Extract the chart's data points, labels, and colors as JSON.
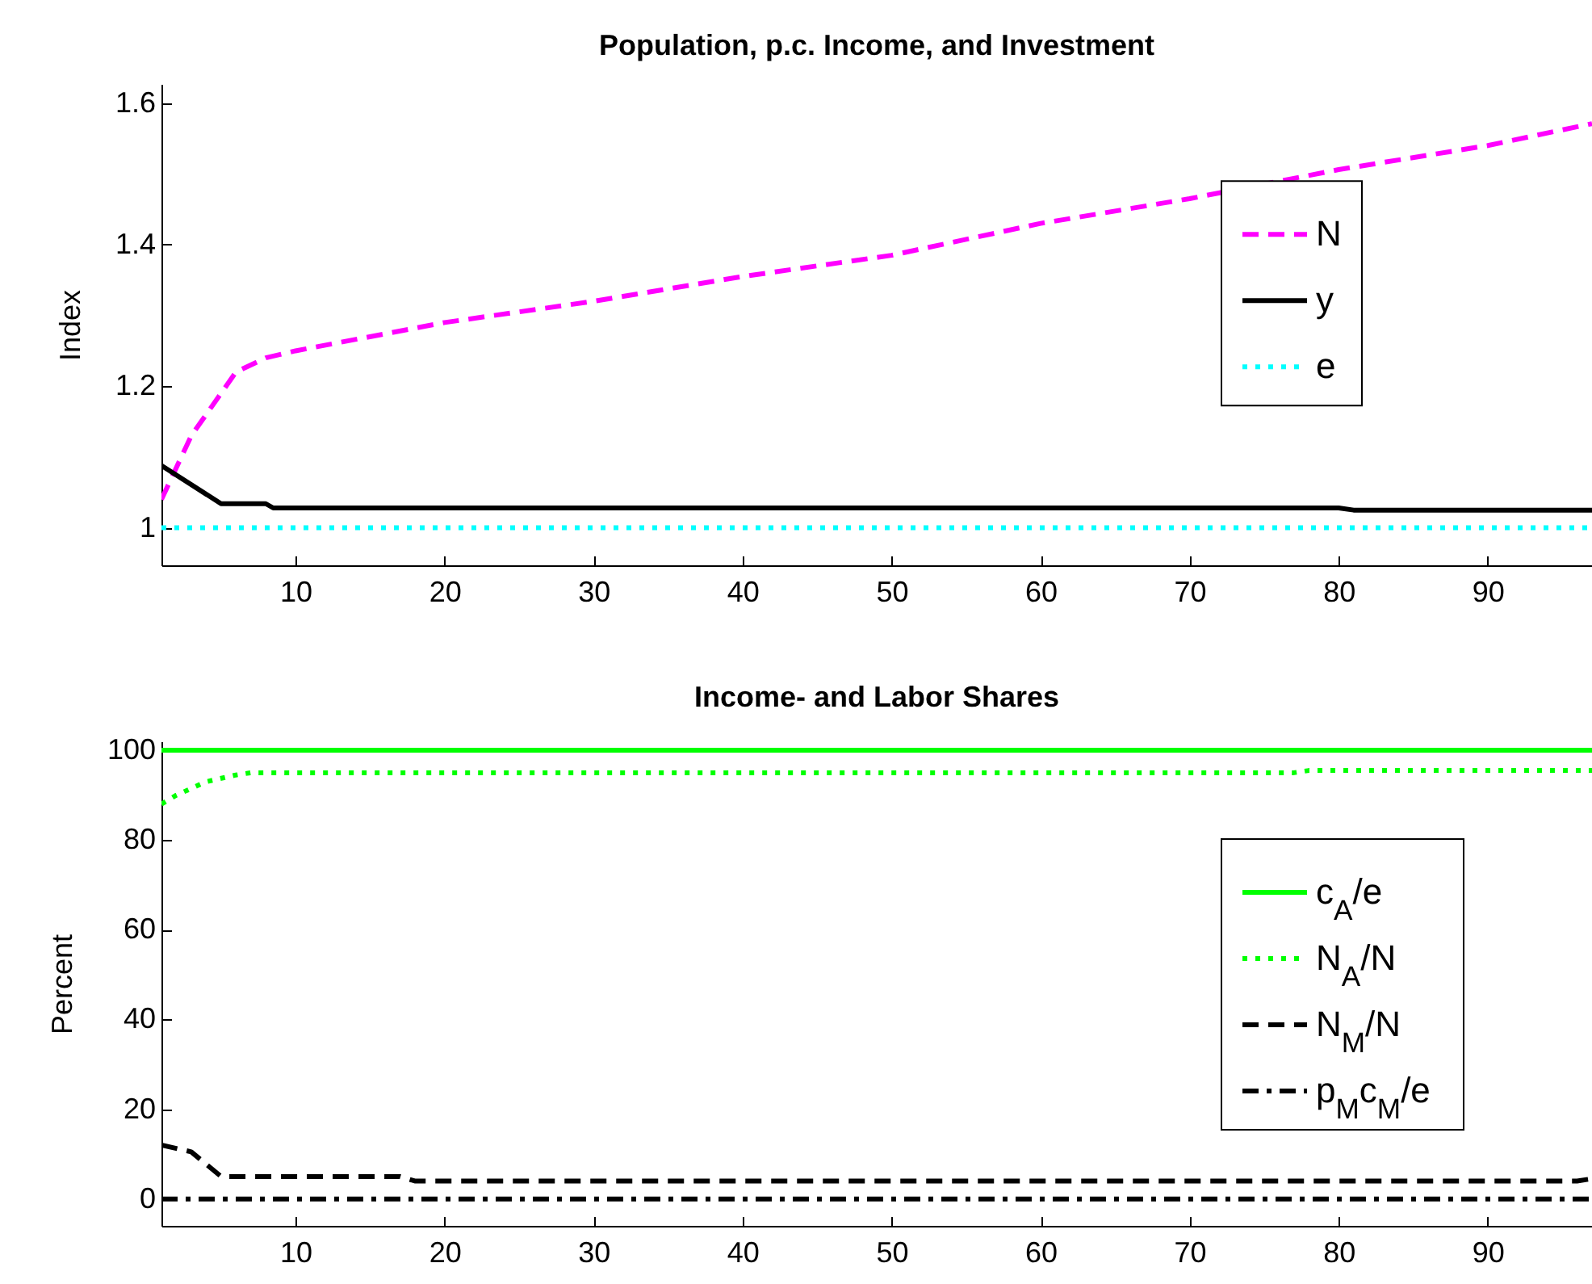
{
  "chart_data": [
    {
      "type": "line",
      "title": "Population, p.c. Income, and Investment",
      "ylabel": "Index",
      "xlim": [
        1,
        97
      ],
      "xticks": [
        10,
        20,
        30,
        40,
        50,
        60,
        70,
        80,
        90
      ],
      "ylim": [
        0.947,
        1.627
      ],
      "yticks": [
        1,
        1.2,
        1.4,
        1.6
      ],
      "legend": "right",
      "grid": false,
      "series": [
        {
          "name": "N",
          "color": "#ff00ff",
          "line_style": "dashed",
          "x": [
            1,
            3,
            6,
            8,
            10,
            20,
            30,
            40,
            50,
            60,
            70,
            80,
            90,
            97
          ],
          "values": [
            1.04,
            1.13,
            1.22,
            1.24,
            1.25,
            1.29,
            1.32,
            1.355,
            1.385,
            1.43,
            1.465,
            1.506,
            1.54,
            1.571
          ]
        },
        {
          "name": "y",
          "color": "#000000",
          "line_style": "solid",
          "x": [
            1,
            5,
            8,
            8.5,
            80,
            81,
            97
          ],
          "values": [
            1.088,
            1.034,
            1.034,
            1.028,
            1.028,
            1.025,
            1.025
          ]
        },
        {
          "name": "e",
          "color": "#00ffff",
          "line_style": "dotted",
          "x": [
            1,
            97
          ],
          "values": [
            1,
            1
          ]
        }
      ]
    },
    {
      "type": "line",
      "title": "Income- and Labor Shares",
      "ylabel": "Percent",
      "xlim": [
        1,
        97
      ],
      "xticks": [
        10,
        20,
        30,
        40,
        50,
        60,
        70,
        80,
        90
      ],
      "ylim": [
        -6,
        102
      ],
      "yticks": [
        0,
        20,
        40,
        60,
        80,
        100
      ],
      "legend": "right",
      "grid": false,
      "series": [
        {
          "name": "c$_{A}$/e",
          "color": "#00ff00",
          "line_style": "solid",
          "x": [
            1,
            97
          ],
          "values": [
            100,
            100
          ]
        },
        {
          "name": "N$_{A}$/N",
          "color": "#00ff00",
          "line_style": "dotted",
          "x": [
            1,
            2,
            4,
            6,
            7,
            77,
            78,
            97
          ],
          "values": [
            88,
            90,
            93,
            94.5,
            95,
            95,
            95.5,
            95.5
          ]
        },
        {
          "name": "N$_{M}$/N",
          "color": "#000000",
          "line_style": "dashed",
          "x": [
            1,
            3,
            5,
            17,
            18,
            96,
            97
          ],
          "values": [
            12,
            10.5,
            5,
            5,
            4,
            4,
            4.5
          ]
        },
        {
          "name": "p$_{M}$c$_{M}$/e",
          "color": "#000000",
          "line_style": "dashdot",
          "x": [
            1,
            97
          ],
          "values": [
            0,
            0
          ]
        }
      ]
    }
  ]
}
